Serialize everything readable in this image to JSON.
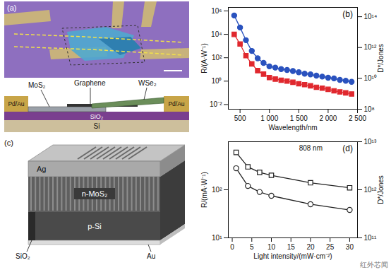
{
  "chart_data": [
    {
      "type": "line",
      "panel_label": "(b)",
      "xlabel": "Wavelength/nm",
      "ylabel": "R/(A·W⁻¹)",
      "y2label": "D*/Jones",
      "log": "y",
      "grid": false,
      "x": [
        400,
        500,
        600,
        700,
        800,
        900,
        1000,
        1100,
        1200,
        1300,
        1400,
        1500,
        1600,
        1700,
        1800,
        1900,
        2000,
        2100,
        2200,
        2300,
        2400
      ],
      "xlim": [
        300,
        2500
      ],
      "xticks": [
        500,
        {
          "value": 1000,
          "label": "1 000"
        },
        {
          "value": 1500,
          "label": "1 500"
        },
        {
          "value": 2000,
          "label": "2 000"
        },
        {
          "value": 2500,
          "label": "2 500"
        }
      ],
      "ylim": [
        0.004,
        2000000
      ],
      "yticks": [
        {
          "value": 0.01,
          "label": "10⁻²"
        },
        {
          "value": 1,
          "label": "10⁰"
        },
        {
          "value": 100,
          "label": "10²"
        },
        {
          "value": 10000,
          "label": "10⁴"
        },
        {
          "value": 1000000,
          "label": "10⁶"
        }
      ],
      "y2lim": [
        100000000,
        400000000000000
      ],
      "y2ticks": [
        {
          "value": 100000000,
          "label": "10⁸"
        },
        {
          "value": 10000000000,
          "label": "10¹⁰"
        },
        {
          "value": 1000000000000,
          "label": "10¹²"
        },
        {
          "value": 100000000000000,
          "label": "10¹⁴"
        }
      ],
      "series": [
        {
          "color": "#e0282e",
          "marker": "square",
          "line_style": "solid",
          "values": [
            10000,
            1500,
            150,
            30,
            8,
            4,
            2,
            1.5,
            1.2,
            1,
            0.8,
            0.6,
            0.5,
            0.4,
            0.3,
            0.25,
            0.2,
            0.15,
            0.12,
            0.1,
            0.08
          ]
        },
        {
          "color": "#2a52be",
          "marker": "circle",
          "line_style": "solid",
          "axis": "y2",
          "values": [
            120000000000000.0,
            20000000000000.0,
            3000000000000.0,
            600000000000.0,
            200000000000.0,
            100000000000.0,
            60000000000.0,
            50000000000.0,
            40000000000.0,
            35000000000.0,
            30000000000.0,
            25000000000.0,
            20000000000.0,
            18000000000.0,
            15000000000.0,
            13000000000.0,
            11000000000.0,
            10000000000.0,
            8000000000.0,
            7000000000.0,
            6000000000.0
          ]
        }
      ]
    },
    {
      "type": "line",
      "panel_label": "(d)",
      "annotation": "808 nm",
      "xlabel": "Light intensity/(mW·cm⁻²)",
      "ylabel": "R/(mA·W⁻¹)",
      "y2label": "D*/Jones",
      "log": "y",
      "grid": false,
      "x": [
        1,
        4,
        7,
        10,
        20,
        30
      ],
      "xlim": [
        -1,
        32
      ],
      "xticks": [
        0,
        5,
        10,
        15,
        20,
        25,
        30
      ],
      "ylim": [
        10,
        1000
      ],
      "yticks": [
        {
          "value": 10,
          "label": "10¹"
        },
        {
          "value": 100,
          "label": "10²"
        }
      ],
      "y2lim": [
        100000000000,
        10000000000000
      ],
      "y2ticks": [
        {
          "value": 100000000000,
          "label": "10¹¹"
        },
        {
          "value": 1000000000000,
          "label": "10¹²"
        },
        {
          "value": 10000000000000,
          "label": "10¹³"
        }
      ],
      "series": [
        {
          "color": "#222222",
          "marker": "open-circle",
          "line_style": "solid",
          "values": [
            280,
            120,
            90,
            75,
            50,
            38
          ]
        },
        {
          "color": "#222222",
          "marker": "open-square",
          "line_style": "solid",
          "axis": "y2",
          "values": [
            6000000000000,
            3000000000000,
            2300000000000,
            2000000000000,
            1400000000000,
            1100000000000
          ]
        }
      ]
    }
  ],
  "diagrams": {
    "a": {
      "panel_label": "(a)",
      "labels": [
        "MoS₂",
        "Graphene",
        "WSe₂"
      ],
      "electrodes": "Pd/Au",
      "substrate": [
        "SiO₂",
        "Si"
      ]
    },
    "c": {
      "panel_label": "(c)",
      "layers": [
        "Ag",
        "n-MoS₂",
        "p-Si"
      ],
      "labels": [
        "SiO₂",
        "Au"
      ]
    }
  },
  "watermark": "红外芯闻"
}
